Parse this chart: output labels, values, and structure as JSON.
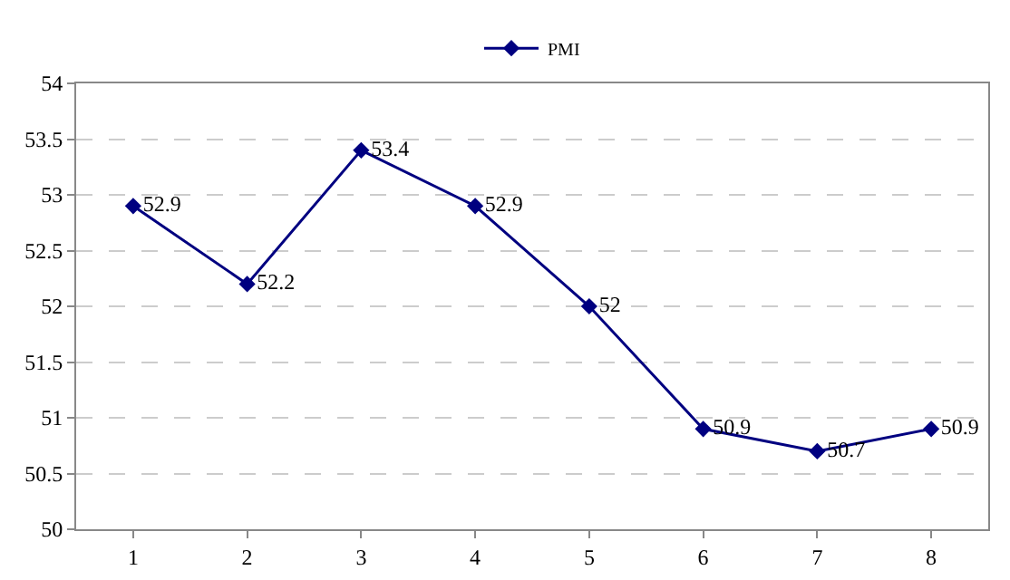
{
  "chart_data": {
    "type": "line",
    "categories": [
      "1",
      "2",
      "3",
      "4",
      "5",
      "6",
      "7",
      "8"
    ],
    "series": [
      {
        "name": "PMI",
        "color": "#000080",
        "values": [
          52.9,
          52.2,
          53.4,
          52.9,
          52,
          50.9,
          50.7,
          50.9
        ]
      }
    ],
    "ylim": [
      50,
      54
    ],
    "yticks": [
      50,
      50.5,
      51,
      51.5,
      52,
      52.5,
      53,
      53.5,
      54
    ],
    "grid": "y",
    "legend": "top",
    "marker": "diamond",
    "line_style": "solid",
    "data_labels": true
  }
}
